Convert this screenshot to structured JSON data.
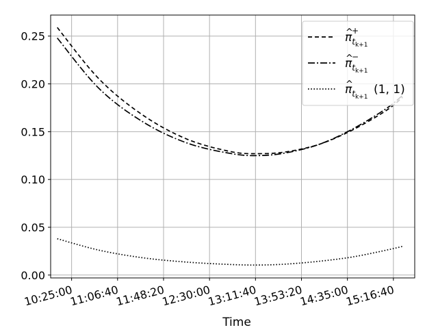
{
  "chart_data": {
    "type": "line",
    "title": "",
    "xlabel": "Time",
    "ylabel": "",
    "grid": true,
    "legend_placement": "top-right",
    "xlim": [
      "10:06:00",
      "15:36:00"
    ],
    "ylim": [
      -0.003,
      0.272
    ],
    "x_ticks": [
      "10:25:00",
      "11:06:40",
      "11:48:20",
      "12:30:00",
      "13:11:40",
      "13:53:20",
      "14:35:00",
      "15:16:40"
    ],
    "y_ticks": [
      "0.00",
      "0.05",
      "0.10",
      "0.15",
      "0.20",
      "0.25"
    ],
    "x": [
      "10:12:00",
      "10:50:00",
      "11:30:00",
      "12:10:00",
      "12:50:00",
      "13:15:00",
      "13:40:00",
      "14:10:00",
      "14:40:00",
      "15:10:00",
      "15:25:00"
    ],
    "series": [
      {
        "legend_tex": [
          "π",
          "^",
          "t",
          "k+1",
          "+",
          ""
        ],
        "dash": "6,4",
        "values": [
          0.259,
          0.205,
          0.167,
          0.142,
          0.129,
          0.127,
          0.129,
          0.137,
          0.152,
          0.172,
          0.186
        ]
      },
      {
        "legend_tex": [
          "π",
          "^",
          "t",
          "k+1",
          "−",
          ""
        ],
        "dash": "10,3,2,3",
        "values": [
          0.248,
          0.195,
          0.16,
          0.138,
          0.127,
          0.125,
          0.128,
          0.137,
          0.153,
          0.174,
          0.188
        ]
      },
      {
        "legend_tex": [
          "π",
          "^",
          "t",
          "k+1",
          "",
          "(1, 1)"
        ],
        "dash": "1.6,2.6",
        "values": [
          0.038,
          0.026,
          0.018,
          0.0135,
          0.011,
          0.0105,
          0.0115,
          0.0145,
          0.019,
          0.026,
          0.03
        ]
      }
    ],
    "colors": {
      "lines": "#000000",
      "grid": "#b0b0b0",
      "frame": "#000000",
      "legend_border": "#cccccc"
    }
  }
}
